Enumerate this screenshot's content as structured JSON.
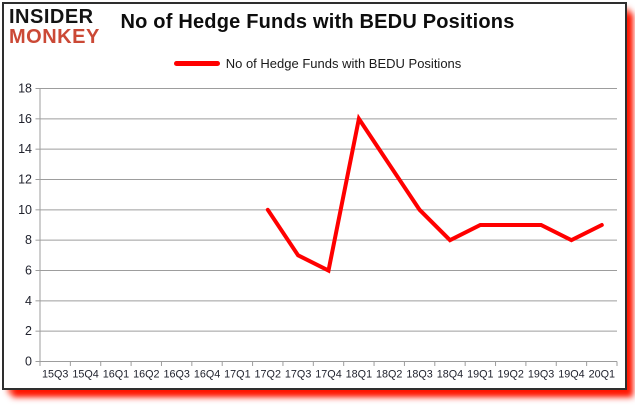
{
  "logo": {
    "line1": "INSIDER",
    "line2": "MONKEY"
  },
  "header": {
    "title": "No of Hedge Funds with BEDU Positions"
  },
  "legend": {
    "label": "No of Hedge Funds with BEDU Positions",
    "color": "#ff0000"
  },
  "colors": {
    "line": "#ff0000",
    "grid": "#9d9d9d",
    "axis": "#9d9d9d",
    "tick_text": "#21232e",
    "logo_black": "#141414",
    "logo_red": "#cb4936",
    "shadow_red": "#ff1500",
    "frame_border": "#2e2e2e"
  },
  "chart_data": {
    "type": "line",
    "title": "No of Hedge Funds with BEDU Positions",
    "categories": [
      "15Q3",
      "15Q4",
      "16Q1",
      "16Q2",
      "16Q3",
      "16Q4",
      "17Q1",
      "17Q2",
      "17Q3",
      "17Q4",
      "18Q1",
      "18Q2",
      "18Q3",
      "18Q4",
      "19Q1",
      "19Q2",
      "19Q3",
      "19Q4",
      "20Q1"
    ],
    "series": [
      {
        "name": "No of Hedge Funds with BEDU Positions",
        "color": "#ff0000",
        "values": [
          null,
          null,
          null,
          null,
          null,
          null,
          null,
          10,
          7,
          6,
          16,
          13,
          10,
          8,
          9,
          9,
          9,
          8,
          9
        ]
      }
    ],
    "ylim": [
      0,
      18
    ],
    "ytick_step": 2,
    "xlabel": "",
    "ylabel": "",
    "grid": "horizontal",
    "legend_position": "top-center"
  }
}
